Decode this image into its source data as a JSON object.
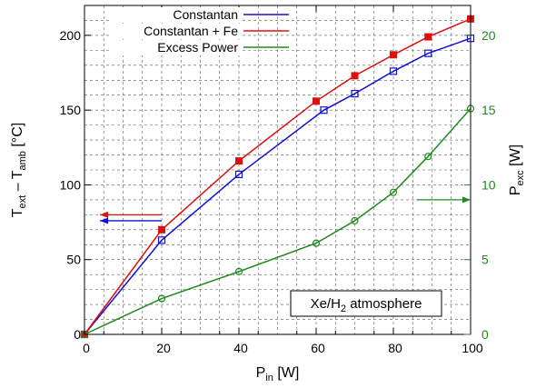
{
  "chart_data": {
    "type": "line",
    "x": [
      0,
      20,
      40,
      60,
      70,
      80,
      90,
      100
    ],
    "xlim": [
      0,
      100
    ],
    "xticks": [
      0,
      20,
      40,
      60,
      80,
      100
    ],
    "xlabel": {
      "main": "P",
      "sub": "in",
      "unit": " [W]"
    },
    "ylim": [
      0,
      220
    ],
    "yticks": [
      0,
      50,
      100,
      150,
      200
    ],
    "ylabel": {
      "t1": "T",
      "s1": "ext",
      "mid": " – T",
      "s2": "amb",
      "unit": " [°C]"
    },
    "y2lim": [
      0,
      22
    ],
    "y2ticks": [
      0,
      5,
      10,
      15,
      20
    ],
    "y2label": {
      "main": "P",
      "sub": "exc",
      "unit": " [W]"
    },
    "grid": true,
    "legend_position": "top-right",
    "series": [
      {
        "name": "Constantan",
        "axis": "left",
        "color": "#1010d8",
        "marker": "open-square",
        "x": [
          0,
          20,
          40,
          62,
          70,
          80,
          89,
          100
        ],
        "y": [
          0,
          63,
          107,
          150,
          161,
          176,
          188,
          198
        ]
      },
      {
        "name": "Constantan + Fe",
        "axis": "left",
        "color": "#dd1010",
        "marker": "filled-square",
        "x": [
          0,
          20,
          40,
          60,
          70,
          80,
          89,
          100
        ],
        "y": [
          0,
          70,
          116,
          156,
          173,
          187,
          199,
          211
        ]
      },
      {
        "name": "Excess Power",
        "axis": "right",
        "color": "#1e8a1e",
        "marker": "open-circle",
        "x": [
          0,
          20,
          40,
          60,
          70,
          80,
          89,
          100
        ],
        "y": [
          0,
          2.4,
          4.2,
          6.1,
          7.6,
          9.5,
          11.9,
          15.1
        ]
      }
    ],
    "annotation": {
      "pre": "Xe/H",
      "sub": "2",
      "post": " atmosphere"
    },
    "arrows": [
      {
        "series": "Constantan + Fe",
        "direction": "left",
        "axis": "left",
        "y": 80,
        "x_from": 20,
        "x_to": 4
      },
      {
        "series": "Constantan",
        "direction": "left",
        "axis": "left",
        "y": 76,
        "x_from": 20,
        "x_to": 4
      },
      {
        "series": "Excess Power",
        "direction": "right",
        "axis": "right",
        "y": 9,
        "x_from": 86,
        "x_to": 100
      }
    ]
  }
}
